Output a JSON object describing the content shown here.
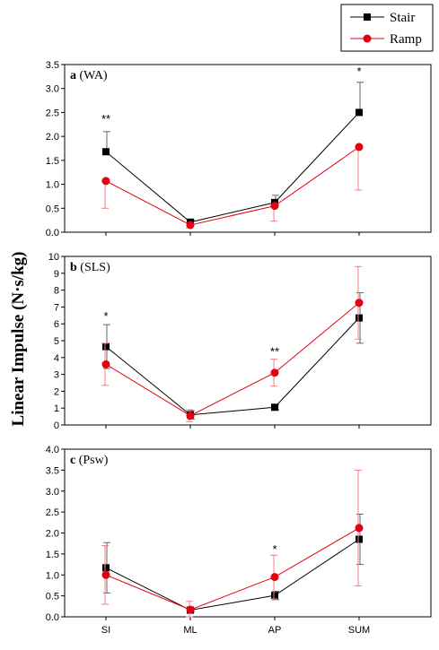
{
  "ylabel": "Linear Impulse (N·s/kg)",
  "legend": {
    "placement": "top-right",
    "entries": [
      {
        "name": "Stair",
        "color": "#000000",
        "marker": "square"
      },
      {
        "name": "Ramp",
        "color": "#e3000f",
        "marker": "circle"
      }
    ]
  },
  "chart_data": [
    {
      "type": "line",
      "panel_letter": "a",
      "panel_name": "(WA)",
      "categories": [
        "SI",
        "ML",
        "AP",
        "SUM"
      ],
      "ylim": [
        0,
        3.5
      ],
      "yticks": [
        0.0,
        0.5,
        1.0,
        1.5,
        2.0,
        2.5,
        3.0,
        3.5
      ],
      "ytick_labels": [
        "0.0",
        "0.5",
        "1.0",
        "1.5",
        "2.0",
        "2.5",
        "3.0",
        "3.5"
      ],
      "show_xlabels": false,
      "series": [
        {
          "name": "Stair",
          "color": "#000000",
          "marker": "square",
          "values": [
            1.68,
            0.21,
            0.62,
            2.5
          ],
          "errors": [
            0.42,
            0.05,
            0.15,
            0.63
          ],
          "error_dir": "up"
        },
        {
          "name": "Ramp",
          "color": "#e3000f",
          "marker": "circle",
          "values": [
            1.07,
            0.15,
            0.55,
            1.78
          ],
          "errors": [
            0.57,
            0.06,
            0.32,
            0.9
          ],
          "error_dir": "down"
        }
      ],
      "annotations": [
        {
          "text": "**",
          "category": "SI",
          "y": 2.38
        },
        {
          "text": "*",
          "category": "SUM",
          "y": 3.37
        }
      ]
    },
    {
      "type": "line",
      "panel_letter": "b",
      "panel_name": "(SLS)",
      "categories": [
        "SI",
        "ML",
        "AP",
        "SUM"
      ],
      "ylim": [
        0,
        10
      ],
      "yticks": [
        0,
        1,
        2,
        3,
        4,
        5,
        6,
        7,
        8,
        9,
        10
      ],
      "ytick_labels": [
        "0",
        "1",
        "2",
        "3",
        "4",
        "5",
        "6",
        "7",
        "8",
        "9",
        "10"
      ],
      "show_xlabels": false,
      "series": [
        {
          "name": "Stair",
          "color": "#000000",
          "marker": "square",
          "values": [
            4.65,
            0.6,
            1.05,
            6.35
          ],
          "errors": [
            1.3,
            0.25,
            0.15,
            1.5
          ],
          "error_dir": "mixed"
        },
        {
          "name": "Ramp",
          "color": "#e3000f",
          "marker": "circle",
          "values": [
            3.6,
            0.55,
            3.1,
            7.25
          ],
          "errors": [
            1.25,
            0.35,
            0.8,
            2.15
          ],
          "error_dir": "mixed"
        }
      ],
      "annotations": [
        {
          "text": "*",
          "category": "SI",
          "y": 6.5
        },
        {
          "text": "**",
          "category": "AP",
          "y": 4.4
        }
      ]
    },
    {
      "type": "line",
      "panel_letter": "c",
      "panel_name": "(Psw)",
      "categories": [
        "SI",
        "ML",
        "AP",
        "SUM"
      ],
      "ylim": [
        0,
        4.0
      ],
      "yticks": [
        0.0,
        0.5,
        1.0,
        1.5,
        2.0,
        2.5,
        3.0,
        3.5,
        4.0
      ],
      "ytick_labels": [
        "0.0",
        "0.5",
        "1.0",
        "1.5",
        "2.0",
        "2.5",
        "3.0",
        "3.5",
        "4.0"
      ],
      "show_xlabels": true,
      "series": [
        {
          "name": "Stair",
          "color": "#000000",
          "marker": "square",
          "values": [
            1.17,
            0.16,
            0.51,
            1.85
          ],
          "errors": [
            0.6,
            0.04,
            0.1,
            0.6
          ],
          "error_dir": "mixed"
        },
        {
          "name": "Ramp",
          "color": "#e3000f",
          "marker": "circle",
          "values": [
            1.0,
            0.17,
            0.95,
            2.12
          ],
          "errors": [
            0.7,
            0.2,
            0.52,
            1.38
          ],
          "error_dir": "mixed"
        }
      ],
      "annotations": [
        {
          "text": "*",
          "category": "AP",
          "y": 1.63
        }
      ]
    }
  ]
}
